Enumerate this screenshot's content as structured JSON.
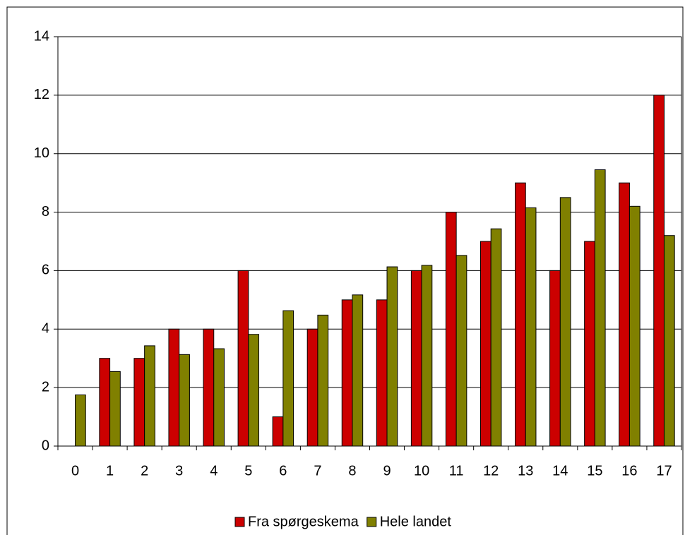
{
  "chart_data": {
    "type": "bar",
    "categories": [
      "0",
      "1",
      "2",
      "3",
      "4",
      "5",
      "6",
      "7",
      "8",
      "9",
      "10",
      "11",
      "12",
      "13",
      "14",
      "15",
      "16",
      "17"
    ],
    "series": [
      {
        "name": "Fra spørgeskema",
        "color": "#cc0000",
        "values": [
          0,
          3,
          3,
          4,
          4,
          6,
          1,
          4,
          5,
          5,
          6,
          8,
          7,
          9,
          6,
          7,
          9,
          12
        ]
      },
      {
        "name": "Hele landet",
        "color": "#808000",
        "values": [
          1.75,
          2.55,
          3.43,
          3.13,
          3.33,
          3.82,
          4.63,
          4.48,
          5.17,
          6.13,
          6.18,
          6.52,
          7.43,
          8.15,
          8.5,
          9.45,
          8.2,
          7.2
        ]
      }
    ],
    "ylim": [
      0,
      14
    ],
    "yticks": [
      0,
      2,
      4,
      6,
      8,
      10,
      12,
      14
    ],
    "grid": true,
    "legend": "bottom"
  }
}
